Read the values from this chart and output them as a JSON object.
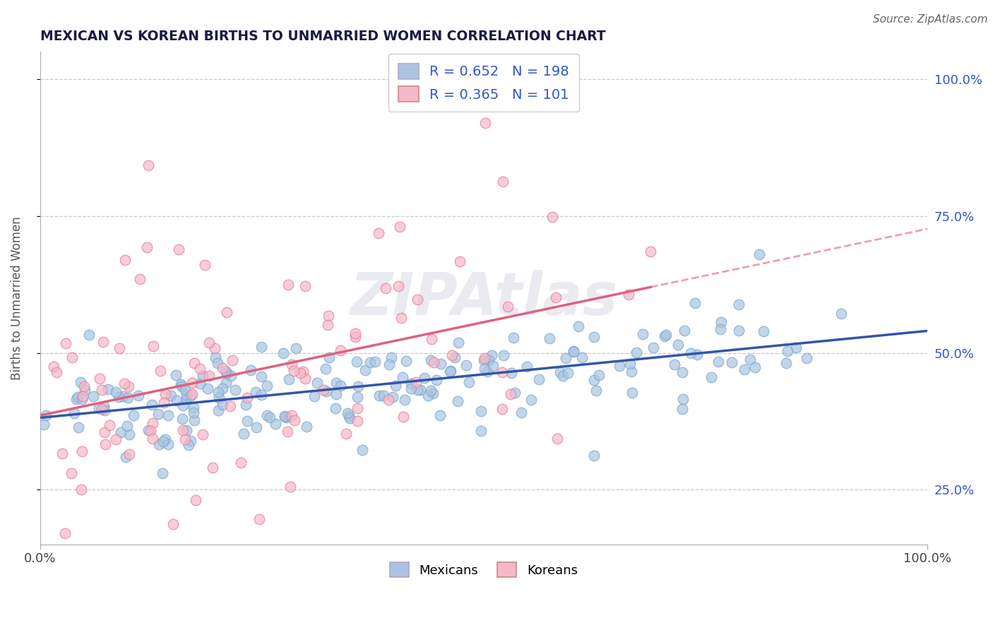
{
  "title": "MEXICAN VS KOREAN BIRTHS TO UNMARRIED WOMEN CORRELATION CHART",
  "source": "Source: ZipAtlas.com",
  "ylabel": "Births to Unmarried Women",
  "xlim": [
    0.0,
    1.0
  ],
  "ylim": [
    0.15,
    1.05
  ],
  "mexican_dot_color": "#aac4e0",
  "mexican_dot_edge": "#7aaad0",
  "korean_dot_color": "#f5b8c8",
  "korean_dot_edge": "#e88098",
  "mexican_line_color": "#3355aa",
  "korean_line_color": "#e06080",
  "blue_text": "#3355cc",
  "title_color": "#1a1a44",
  "bg_color": "#ffffff",
  "grid_color": "#bbbbcc",
  "r_mexican": 0.652,
  "r_korean": 0.365,
  "n_mexican": 198,
  "n_korean": 101,
  "watermark": "ZIPAtlas",
  "ytick_vals": [
    0.25,
    0.5,
    0.75,
    1.0
  ],
  "ytick_labels": [
    "25.0%",
    "50.0%",
    "75.0%",
    "100.0%"
  ],
  "xtick_vals": [
    0.0,
    1.0
  ],
  "xtick_labels": [
    "0.0%",
    "100.0%"
  ],
  "bottom_legend": [
    "Mexicans",
    "Koreans"
  ],
  "mex_patch_color": "#aac4e0",
  "kor_patch_color": "#f5b8c8"
}
